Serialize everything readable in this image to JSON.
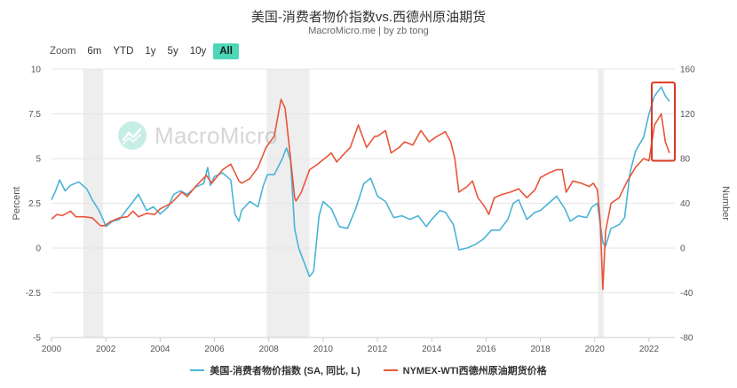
{
  "header": {
    "title": "美国-消费者物价指数vs.西德州原油期货",
    "subtitle": "MacroMicro.me | by zb tong"
  },
  "zoom": {
    "label": "Zoom",
    "buttons": [
      "6m",
      "YTD",
      "1y",
      "5y",
      "10y",
      "All"
    ],
    "active": "All"
  },
  "watermark": {
    "text": "MacroMicro",
    "icon": "macromicro-logo-icon"
  },
  "colors": {
    "cpi": "#4ab3d6",
    "wti": "#e8553a",
    "recession": "#eeeeee",
    "highlight": "#d83a28",
    "grid": "#e6e6e6"
  },
  "chart_data": {
    "type": "line",
    "x_ticks": [
      "2000",
      "2002",
      "2004",
      "2006",
      "2008",
      "2010",
      "2012",
      "2014",
      "2016",
      "2018",
      "2020",
      "2022"
    ],
    "y_left": {
      "label": "Percent",
      "range": [
        -5,
        10
      ],
      "ticks": [
        "10",
        "7.5",
        "5",
        "2.5",
        "0",
        "-2.5",
        "-5"
      ]
    },
    "y_right": {
      "label": "Number",
      "range": [
        -80,
        160
      ],
      "ticks": [
        "160",
        "120",
        "80",
        "40",
        "0",
        "-40",
        "-80"
      ]
    },
    "recessions": [
      [
        2001.17,
        2001.9
      ],
      [
        2007.92,
        2009.5
      ],
      [
        2020.12,
        2020.33
      ]
    ],
    "highlight_box": {
      "x_range": [
        2022.1,
        2022.95
      ],
      "y_right_range": [
        78,
        148
      ]
    },
    "series": [
      {
        "name": "美国-消费者物价指数 (SA, 同比, L)",
        "axis": "left",
        "x": [
          2000.0,
          2000.15,
          2000.3,
          2000.5,
          2000.7,
          2001.0,
          2001.3,
          2001.5,
          2001.75,
          2001.9,
          2002.0,
          2002.25,
          2002.5,
          2002.8,
          2003.0,
          2003.2,
          2003.5,
          2003.75,
          2004.0,
          2004.3,
          2004.5,
          2004.75,
          2005.0,
          2005.3,
          2005.6,
          2005.75,
          2005.85,
          2006.0,
          2006.3,
          2006.6,
          2006.75,
          2006.9,
          2007.0,
          2007.3,
          2007.6,
          2007.8,
          2007.95,
          2008.2,
          2008.5,
          2008.65,
          2008.8,
          2008.95,
          2009.1,
          2009.3,
          2009.5,
          2009.65,
          2009.85,
          2010.0,
          2010.3,
          2010.6,
          2010.9,
          2011.2,
          2011.5,
          2011.75,
          2012.0,
          2012.3,
          2012.6,
          2012.9,
          2013.2,
          2013.5,
          2013.8,
          2014.0,
          2014.3,
          2014.5,
          2014.8,
          2015.0,
          2015.3,
          2015.6,
          2015.9,
          2016.2,
          2016.5,
          2016.8,
          2017.0,
          2017.2,
          2017.5,
          2017.8,
          2018.0,
          2018.3,
          2018.6,
          2018.9,
          2019.1,
          2019.4,
          2019.7,
          2019.9,
          2020.1,
          2020.3,
          2020.4,
          2020.6,
          2020.9,
          2021.1,
          2021.3,
          2021.5,
          2021.8,
          2022.0,
          2022.2,
          2022.45,
          2022.6,
          2022.75
        ],
        "y": [
          2.7,
          3.2,
          3.8,
          3.2,
          3.5,
          3.7,
          3.3,
          2.7,
          2.1,
          1.6,
          1.2,
          1.5,
          1.6,
          2.2,
          2.6,
          3.0,
          2.1,
          2.3,
          1.9,
          2.3,
          3.0,
          3.2,
          3.0,
          3.4,
          3.6,
          4.5,
          3.5,
          4.0,
          4.2,
          3.8,
          1.9,
          1.5,
          2.1,
          2.6,
          2.3,
          3.5,
          4.1,
          4.1,
          5.0,
          5.6,
          4.9,
          1.1,
          0.0,
          -0.8,
          -1.6,
          -1.3,
          1.8,
          2.6,
          2.2,
          1.2,
          1.1,
          2.2,
          3.6,
          3.9,
          2.9,
          2.6,
          1.7,
          1.8,
          1.6,
          1.8,
          1.2,
          1.6,
          2.1,
          2.0,
          1.3,
          -0.1,
          0.0,
          0.2,
          0.5,
          1.0,
          1.0,
          1.6,
          2.5,
          2.7,
          1.6,
          2.0,
          2.1,
          2.5,
          2.9,
          2.2,
          1.5,
          1.8,
          1.7,
          2.3,
          2.5,
          0.3,
          0.1,
          1.1,
          1.3,
          1.7,
          4.2,
          5.4,
          6.2,
          7.5,
          8.5,
          9.0,
          8.5,
          8.2
        ]
      },
      {
        "name": "NYMEX-WTI西德州原油期货价格",
        "axis": "right",
        "x": [
          2000.0,
          2000.2,
          2000.4,
          2000.7,
          2000.9,
          2001.2,
          2001.5,
          2001.8,
          2001.95,
          2002.2,
          2002.5,
          2002.8,
          2003.0,
          2003.2,
          2003.5,
          2003.8,
          2004.0,
          2004.4,
          2004.8,
          2005.0,
          2005.3,
          2005.7,
          2005.9,
          2006.3,
          2006.6,
          2006.9,
          2007.0,
          2007.3,
          2007.6,
          2007.9,
          2008.2,
          2008.45,
          2008.6,
          2008.8,
          2008.95,
          2009.0,
          2009.2,
          2009.5,
          2009.8,
          2010.0,
          2010.3,
          2010.5,
          2010.8,
          2011.0,
          2011.3,
          2011.6,
          2011.9,
          2012.0,
          2012.3,
          2012.5,
          2012.8,
          2013.0,
          2013.3,
          2013.6,
          2013.9,
          2014.2,
          2014.5,
          2014.7,
          2014.85,
          2015.0,
          2015.3,
          2015.5,
          2015.7,
          2015.95,
          2016.1,
          2016.3,
          2016.6,
          2016.9,
          2017.2,
          2017.5,
          2017.8,
          2018.0,
          2018.3,
          2018.6,
          2018.8,
          2018.95,
          2019.2,
          2019.5,
          2019.8,
          2019.95,
          2020.1,
          2020.2,
          2020.3,
          2020.4,
          2020.6,
          2020.9,
          2021.2,
          2021.5,
          2021.8,
          2022.0,
          2022.2,
          2022.45,
          2022.6,
          2022.75
        ],
        "y": [
          26,
          30,
          29,
          33,
          28,
          28,
          27,
          20,
          20,
          24,
          27,
          28,
          33,
          28,
          31,
          30,
          35,
          40,
          50,
          46,
          55,
          65,
          58,
          70,
          75,
          60,
          58,
          62,
          72,
          90,
          100,
          133,
          125,
          80,
          45,
          42,
          50,
          70,
          75,
          79,
          85,
          77,
          85,
          90,
          110,
          90,
          100,
          100,
          105,
          85,
          90,
          95,
          92,
          105,
          95,
          100,
          104,
          95,
          80,
          50,
          55,
          60,
          45,
          37,
          30,
          45,
          48,
          50,
          53,
          45,
          52,
          63,
          67,
          70,
          70,
          50,
          60,
          58,
          55,
          58,
          52,
          25,
          -37,
          15,
          40,
          45,
          60,
          72,
          80,
          78,
          110,
          120,
          95,
          85
        ]
      }
    ]
  },
  "legend": {
    "cpi_label": "美国-消费者物价指数 (SA, 同比, L)",
    "wti_label": "NYMEX-WTI西德州原油期货价格"
  }
}
